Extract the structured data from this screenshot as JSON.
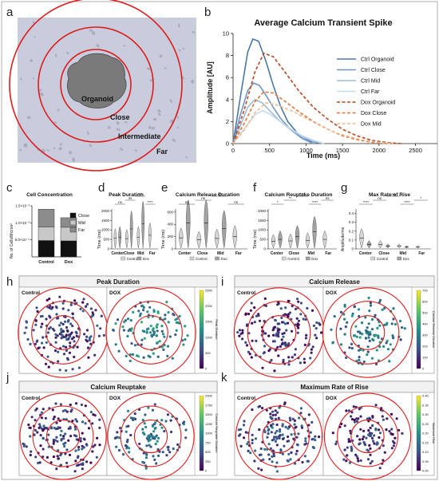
{
  "panel_letters": [
    "a",
    "b",
    "c",
    "d",
    "e",
    "f",
    "g",
    "h",
    "i",
    "j",
    "k"
  ],
  "panel_a": {
    "labels": [
      "Organoid",
      "Close",
      "Intermediate",
      "Far"
    ],
    "colors": {
      "background": "#c9ccdc",
      "rings": "#e01a1a",
      "organoid": "#7a7a7a"
    }
  },
  "chart_data": [
    {
      "id": "b",
      "type": "line",
      "title": "Average Calcium Transient Spike",
      "xlabel": "Time (ms)",
      "ylabel": "Amplitude [AU]",
      "xlim": [
        0,
        2800
      ],
      "ylim": [
        0,
        10
      ],
      "xticks": [
        0,
        500,
        1000,
        1500,
        2000,
        2500
      ],
      "yticks": [
        0,
        2,
        4,
        6,
        8,
        10
      ],
      "legend_position": "top-right",
      "series": [
        {
          "name": "Ctrl Organoid",
          "color": "#4a78a8",
          "dash": false,
          "x": [
            0,
            100,
            200,
            270,
            350,
            450,
            550,
            650,
            750,
            900,
            1050,
            1200
          ],
          "y": [
            0,
            4.2,
            8.3,
            9.5,
            9.3,
            7.5,
            5.3,
            3.4,
            2.0,
            0.8,
            0.25,
            0
          ]
        },
        {
          "name": "Ctrl Close",
          "color": "#6e96c4",
          "dash": false,
          "x": [
            0,
            100,
            200,
            280,
            360,
            450,
            550,
            650,
            800,
            950,
            1100
          ],
          "y": [
            0,
            2.6,
            4.8,
            5.5,
            5.3,
            4.4,
            3.3,
            2.3,
            1.2,
            0.45,
            0
          ]
        },
        {
          "name": "Ctrl Mid",
          "color": "#9bbbd9",
          "dash": false,
          "x": [
            0,
            100,
            200,
            300,
            400,
            500,
            650,
            800,
            950,
            1100,
            1250
          ],
          "y": [
            0,
            1.6,
            3.3,
            4.0,
            3.7,
            3.0,
            2.0,
            1.2,
            0.6,
            0.2,
            0
          ]
        },
        {
          "name": "Ctrl Far",
          "color": "#c6daeb",
          "dash": false,
          "x": [
            0,
            150,
            300,
            400,
            500,
            650,
            800,
            950,
            1100,
            1250
          ],
          "y": [
            0,
            1.3,
            2.6,
            3.0,
            2.7,
            2.0,
            1.3,
            0.7,
            0.3,
            0
          ]
        },
        {
          "name": "Dox Organoid",
          "color": "#b9471d",
          "dash": true,
          "x": [
            0,
            150,
            300,
            420,
            550,
            700,
            900,
            1100,
            1300,
            1500,
            1700,
            1900,
            2100,
            2300
          ],
          "y": [
            0,
            3.0,
            6.5,
            8.2,
            7.9,
            6.6,
            4.8,
            3.3,
            2.2,
            1.3,
            0.7,
            0.3,
            0.1,
            0
          ]
        },
        {
          "name": "Dox Close",
          "color": "#e0763a",
          "dash": true,
          "x": [
            0,
            150,
            300,
            420,
            550,
            700,
            900,
            1100,
            1300,
            1500,
            1700,
            1900,
            2100
          ],
          "y": [
            0,
            1.8,
            3.8,
            4.7,
            4.6,
            3.9,
            2.9,
            2.0,
            1.3,
            0.7,
            0.35,
            0.12,
            0
          ]
        },
        {
          "name": "Dox Mid",
          "color": "#f3b98e",
          "dash": true,
          "x": [
            0,
            150,
            300,
            450,
            600,
            800,
            1000,
            1200,
            1400,
            1600,
            1800,
            2000,
            2200
          ],
          "y": [
            0,
            1.2,
            2.8,
            3.7,
            3.5,
            3.0,
            2.3,
            1.6,
            1.0,
            0.6,
            0.3,
            0.1,
            0
          ]
        }
      ]
    },
    {
      "id": "c",
      "type": "bar",
      "title": "Cell Concentration",
      "ylabel": "No. of Cells/Micron²",
      "yticks": [
        "5.0×10⁻⁴",
        "1.0×10⁻³",
        "1.5×10⁻³"
      ],
      "categories": [
        "Control",
        "Dox"
      ],
      "series": [
        {
          "name": "Close",
          "color": "#111111",
          "values": [
            0.00048,
            0.00047
          ]
        },
        {
          "name": "Mid",
          "color": "#c8c8c8",
          "values": [
            0.0004,
            0.0004
          ]
        },
        {
          "name": "Far",
          "color": "#8c8c8c",
          "values": [
            0.00052,
            0.00028
          ]
        }
      ],
      "ylim": [
        0,
        0.0015
      ]
    },
    {
      "id": "d",
      "type": "violin",
      "title": "Peak Duration",
      "ylabel": "Time (ms)",
      "categories": [
        "Center",
        "Close",
        "Mid",
        "Far"
      ],
      "legend": [
        "Control",
        "Dox"
      ],
      "yticks": [
        0,
        500,
        1000,
        1500,
        2000
      ],
      "ylim": [
        0,
        2100
      ],
      "medians": {
        "Control": [
          560,
          540,
          620,
          720
        ],
        "Dox": [
          620,
          1050,
          1320,
          0
        ]
      },
      "significance": [
        "ns",
        "ns",
        "***",
        "****"
      ]
    },
    {
      "id": "e",
      "type": "violin",
      "title": "Calcium Release Duration",
      "ylabel": "Time (ms)",
      "categories": [
        "Center",
        "Close",
        "Mid",
        "Far"
      ],
      "legend": [
        "Control",
        "Dox"
      ],
      "yticks": [
        0,
        200,
        400,
        600
      ],
      "ylim": [
        0,
        650
      ],
      "medians": {
        "Control": [
          180,
          150,
          170,
          200
        ],
        "Dox": [
          420,
          420,
          330,
          0
        ]
      },
      "significance": [
        "ns",
        "ns",
        "ns",
        "ns"
      ]
    },
    {
      "id": "f",
      "type": "violin",
      "title": "Calcium Reuptake Duration",
      "ylabel": "Time (ms)",
      "categories": [
        "Center",
        "Close",
        "Mid",
        "Far"
      ],
      "legend": [
        "Control",
        "Dox"
      ],
      "yticks": [
        0,
        500,
        1000,
        1500,
        2000
      ],
      "ylim": [
        0,
        2100
      ],
      "medians": {
        "Control": [
          400,
          420,
          450,
          500
        ],
        "Dox": [
          500,
          650,
          900,
          0
        ]
      },
      "significance": [
        "*",
        "**",
        "****",
        "****",
        "ns"
      ]
    },
    {
      "id": "g",
      "type": "violin",
      "title": "Max Rate of Rise",
      "ylabel": "Amplitude/ms",
      "categories": [
        "Center",
        "Close",
        "Mid",
        "Far"
      ],
      "legend": [
        "Control",
        "Dox"
      ],
      "yticks": [
        0.0,
        0.1,
        0.2,
        0.3,
        0.4
      ],
      "ylim": [
        0,
        0.45
      ],
      "medians": {
        "Control": [
          0.12,
          0.05,
          0.03,
          0.02
        ],
        "Dox": [
          0.05,
          0.03,
          0.02,
          0
        ]
      },
      "significance": [
        "****",
        "ns",
        "ns",
        "****",
        "*"
      ]
    },
    {
      "id": "h",
      "type": "scatter",
      "title": "Peak Duration",
      "subpanels": [
        "Control",
        "DOX"
      ],
      "colorbar_label": "Peak Duration",
      "colorbar_ticks": [
        "0",
        "500",
        "1000",
        "1500",
        "2000",
        "2500"
      ]
    },
    {
      "id": "i",
      "type": "scatter",
      "title": "Calcium Release",
      "subpanels": [
        "Control",
        "DOX"
      ],
      "colorbar_label": "Calcium Release Duration",
      "colorbar_ticks": [
        "0",
        "100",
        "200",
        "300",
        "400",
        "500",
        "600",
        "700"
      ]
    },
    {
      "id": "j",
      "type": "scatter",
      "title": "Calcium Reuptake",
      "subpanels": [
        "Control",
        "DOX"
      ],
      "colorbar_label": "Calcium Reuptake Duration",
      "colorbar_ticks": [
        "0",
        "250",
        "500",
        "750",
        "1000",
        "1250",
        "1500",
        "1750",
        "2000"
      ]
    },
    {
      "id": "k",
      "type": "scatter",
      "title": "Maximum Rate of Rise",
      "subpanels": [
        "Control",
        "DOX"
      ],
      "colorbar_label": "Maximum Rise",
      "colorbar_ticks": [
        "0.00",
        "0.05",
        "0.10",
        "0.15",
        "0.20",
        "0.25",
        "0.30",
        "0.35",
        "0.40"
      ]
    }
  ]
}
